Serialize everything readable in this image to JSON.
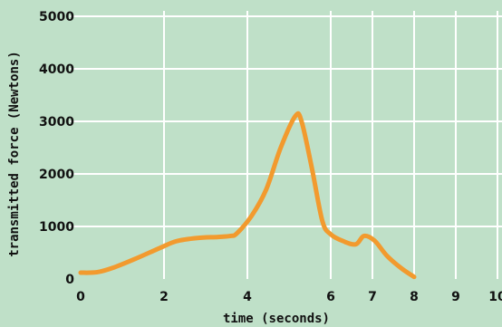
{
  "chart_data": {
    "type": "line",
    "xlabel": "time (seconds)",
    "ylabel": "transmitted force (Newtons)",
    "xlim": [
      0,
      10
    ],
    "ylim": [
      0,
      5000
    ],
    "x_ticks": [
      "0",
      "2",
      "4",
      "6",
      "7",
      "8",
      "9",
      "10"
    ],
    "y_ticks": [
      "0",
      "1000",
      "2000",
      "3000",
      "4000",
      "5000"
    ],
    "grid": true,
    "colors": {
      "background": "#bfe0c8",
      "grid": "#ffffff",
      "series": "#f29a2e",
      "text": "#111111"
    },
    "series": [
      {
        "x": [
          0,
          0.4,
          0.8,
          1.3,
          1.9,
          2.3,
          2.8,
          3.3,
          3.6,
          3.75,
          4.1,
          4.45,
          4.8,
          5.15,
          5.3,
          5.55,
          5.8,
          6.0,
          6.3,
          6.6,
          6.8,
          7.05,
          7.35,
          7.7,
          8.0
        ],
        "y": [
          120,
          130,
          220,
          380,
          590,
          720,
          780,
          800,
          820,
          870,
          1200,
          1700,
          2500,
          3100,
          3000,
          2100,
          1100,
          850,
          720,
          660,
          820,
          730,
          440,
          200,
          40
        ]
      }
    ]
  }
}
